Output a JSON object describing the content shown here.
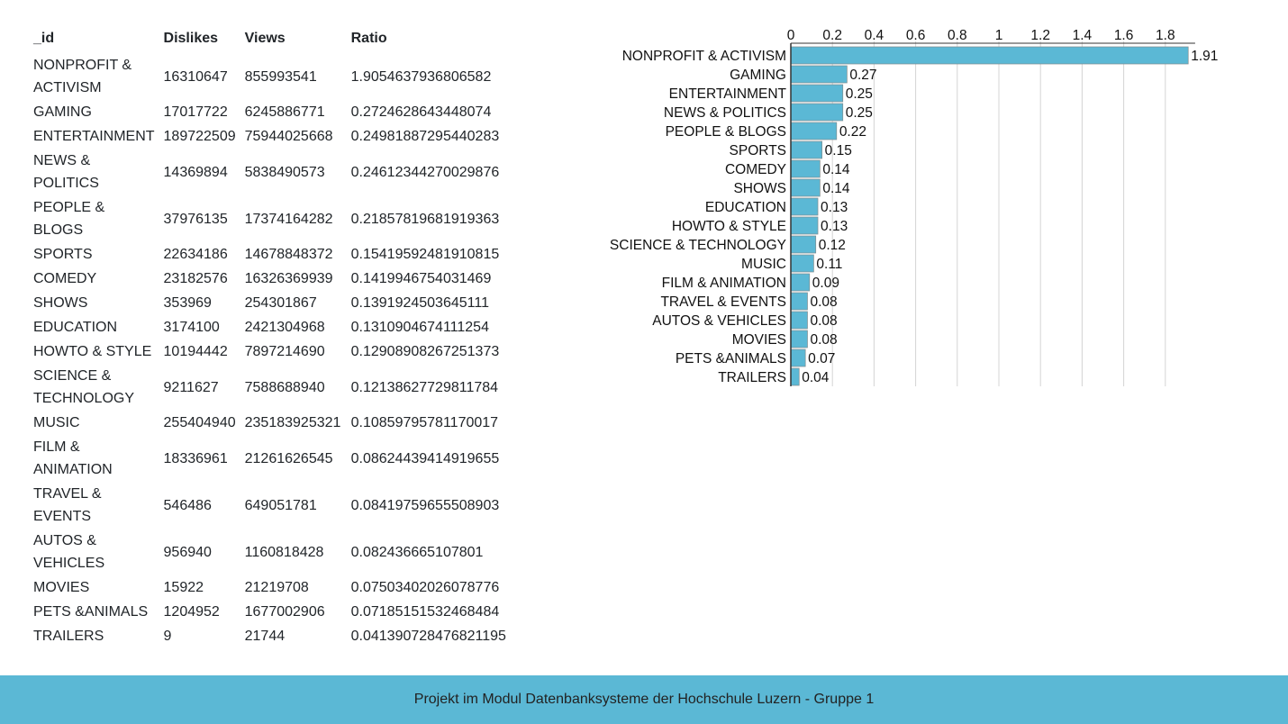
{
  "table": {
    "headers": [
      "_id",
      "Dislikes",
      "Views",
      "Ratio"
    ],
    "rows": [
      [
        "NONPROFIT & ACTIVISM",
        "16310647",
        "855993541",
        "1.9054637936806582"
      ],
      [
        "GAMING",
        "17017722",
        "6245886771",
        "0.2724628643448074"
      ],
      [
        "ENTERTAINMENT",
        "189722509",
        "75944025668",
        "0.24981887295440283"
      ],
      [
        "NEWS & POLITICS",
        "14369894",
        "5838490573",
        "0.24612344270029876"
      ],
      [
        "PEOPLE & BLOGS",
        "37976135",
        "17374164282",
        "0.21857819681919363"
      ],
      [
        "SPORTS",
        "22634186",
        "14678848372",
        "0.15419592481910815"
      ],
      [
        "COMEDY",
        "23182576",
        "16326369939",
        "0.1419946754031469"
      ],
      [
        "SHOWS",
        "353969",
        "254301867",
        "0.1391924503645111"
      ],
      [
        "EDUCATION",
        "3174100",
        "2421304968",
        "0.1310904674111254"
      ],
      [
        "HOWTO & STYLE",
        "10194442",
        "7897214690",
        "0.12908908267251373"
      ],
      [
        "SCIENCE & TECHNOLOGY",
        "9211627",
        "7588688940",
        "0.12138627729811784"
      ],
      [
        "MUSIC",
        "255404940",
        "235183925321",
        "0.10859795781170017"
      ],
      [
        "FILM & ANIMATION",
        "18336961",
        "21261626545",
        "0.08624439414919655"
      ],
      [
        "TRAVEL & EVENTS",
        "546486",
        "649051781",
        "0.08419759655508903"
      ],
      [
        "AUTOS & VEHICLES",
        "956940",
        "1160818428",
        "0.082436665107801"
      ],
      [
        "MOVIES",
        "15922",
        "21219708",
        "0.07503402026078776"
      ],
      [
        "PETS &ANIMALS",
        "1204952",
        "1677002906",
        "0.07185151532468484"
      ],
      [
        "TRAILERS",
        "9",
        "21744",
        "0.041390728476821195"
      ]
    ]
  },
  "chart_data": {
    "type": "bar",
    "orientation": "horizontal",
    "categories": [
      "NONPROFIT & ACTIVISM",
      "GAMING",
      "ENTERTAINMENT",
      "NEWS & POLITICS",
      "PEOPLE & BLOGS",
      "SPORTS",
      "COMEDY",
      "SHOWS",
      "EDUCATION",
      "HOWTO & STYLE",
      "SCIENCE & TECHNOLOGY",
      "MUSIC",
      "FILM & ANIMATION",
      "TRAVEL & EVENTS",
      "AUTOS & VEHICLES",
      "MOVIES",
      "PETS &ANIMALS",
      "TRAILERS"
    ],
    "values": [
      1.91,
      0.27,
      0.25,
      0.25,
      0.22,
      0.15,
      0.14,
      0.14,
      0.13,
      0.13,
      0.12,
      0.11,
      0.09,
      0.08,
      0.08,
      0.08,
      0.07,
      0.04
    ],
    "xlim": [
      0,
      1.9
    ],
    "ticks": [
      "0",
      "0.2",
      "0.4",
      "0.6",
      "0.8",
      "1",
      "1.2",
      "1.4",
      "1.6",
      "1.8"
    ],
    "x_axis_position": "top",
    "grid": true,
    "bar_color": "#5bb8d5",
    "title": "",
    "xlabel": "",
    "ylabel": ""
  },
  "footer": {
    "text": "Projekt im Modul Datenbanksysteme der Hochschule Luzern - Gruppe 1",
    "color": "#5bb8d5"
  }
}
